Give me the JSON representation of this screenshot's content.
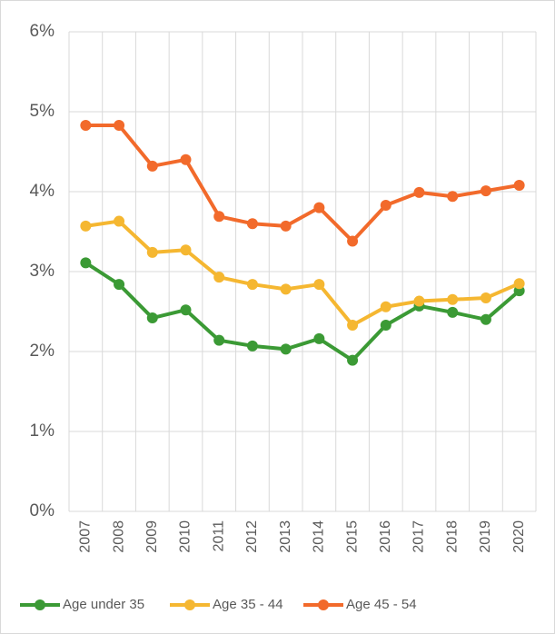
{
  "chart_data": {
    "type": "line",
    "categories": [
      "2007",
      "2008",
      "2009",
      "2010",
      "2011",
      "2012",
      "2013",
      "2014",
      "2015",
      "2016",
      "2017",
      "2018",
      "2019",
      "2020"
    ],
    "series": [
      {
        "name": "Age under 35",
        "color": "#3b9a35",
        "values": [
          3.11,
          2.84,
          2.42,
          2.52,
          2.14,
          2.07,
          2.03,
          2.16,
          1.89,
          2.33,
          2.57,
          2.49,
          2.4,
          2.76
        ]
      },
      {
        "name": "Age 35 - 44",
        "color": "#f5b731",
        "values": [
          3.57,
          3.63,
          3.24,
          3.27,
          2.93,
          2.84,
          2.78,
          2.84,
          2.33,
          2.56,
          2.63,
          2.65,
          2.67,
          2.85
        ]
      },
      {
        "name": "Age 45 - 54",
        "color": "#f26a2b",
        "values": [
          4.83,
          4.83,
          4.32,
          4.4,
          3.69,
          3.6,
          3.57,
          3.8,
          3.38,
          3.83,
          3.99,
          3.94,
          4.01,
          4.08
        ]
      }
    ],
    "ylim": [
      0,
      6
    ],
    "yticks": [
      {
        "value": 0,
        "label": "0%"
      },
      {
        "value": 1,
        "label": "1%"
      },
      {
        "value": 2,
        "label": "2%"
      },
      {
        "value": 3,
        "label": "3%"
      },
      {
        "value": 4,
        "label": "4%"
      },
      {
        "value": 5,
        "label": "5%"
      },
      {
        "value": 6,
        "label": "6%"
      }
    ],
    "grid": true
  }
}
